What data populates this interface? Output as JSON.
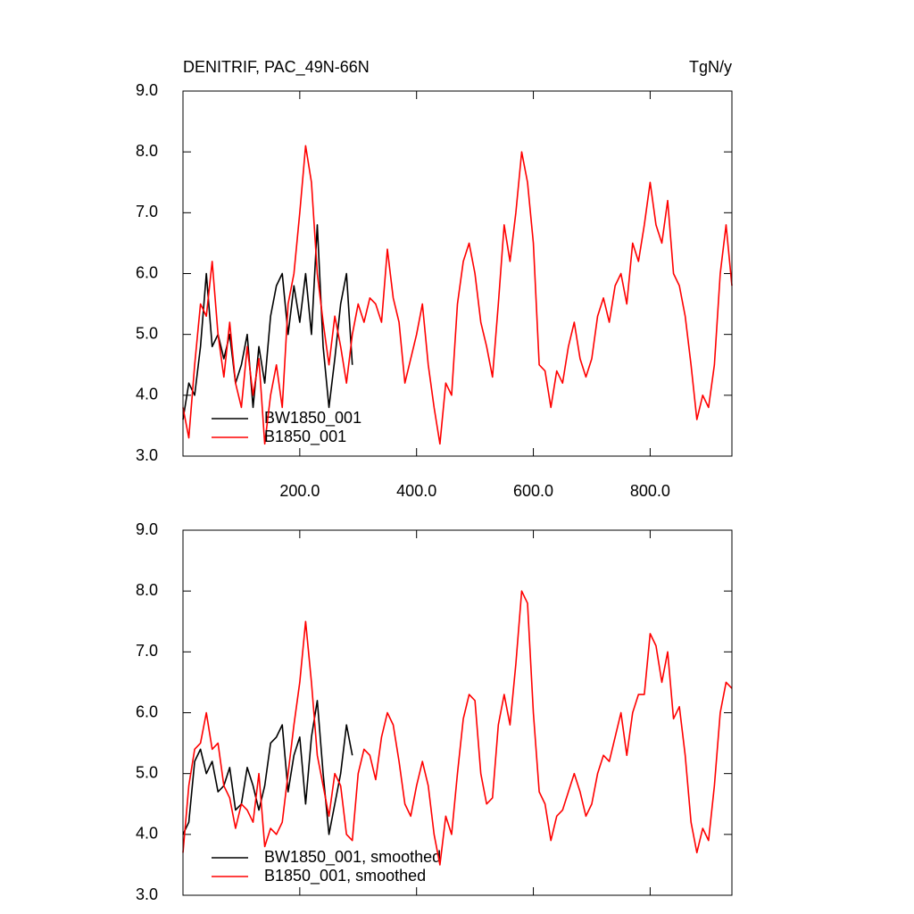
{
  "chart_data": [
    {
      "type": "line",
      "title": "DENITRIF, PAC_49N-66N",
      "units": "TgN/y",
      "x": [
        0,
        10,
        20,
        30,
        40,
        50,
        60,
        70,
        80,
        90,
        100,
        110,
        120,
        130,
        140,
        150,
        160,
        170,
        180,
        190,
        200,
        210,
        220,
        230,
        240,
        250,
        260,
        270,
        280,
        290,
        300,
        310,
        320,
        330,
        340,
        350,
        360,
        370,
        380,
        390,
        400,
        410,
        420,
        430,
        440,
        450,
        460,
        470,
        480,
        490,
        500,
        510,
        520,
        530,
        540,
        550,
        560,
        570,
        580,
        590,
        600,
        610,
        620,
        630,
        640,
        650,
        660,
        670,
        680,
        690,
        700,
        710,
        720,
        730,
        740,
        750,
        760,
        770,
        780,
        790,
        800,
        810,
        820,
        830,
        840,
        850,
        860,
        870,
        880,
        890,
        900,
        910,
        920,
        930,
        940
      ],
      "series": [
        {
          "name": "BW1850_001",
          "color": "#000000",
          "values": [
            3.6,
            4.2,
            4.0,
            4.8,
            6.0,
            4.8,
            5.0,
            4.6,
            5.0,
            4.2,
            4.5,
            5.0,
            3.8,
            4.8,
            4.2,
            5.3,
            5.8,
            6.0,
            5.0,
            5.8,
            5.2,
            6.0,
            5.0,
            6.8,
            4.8,
            3.8,
            4.6,
            5.5,
            6.0,
            4.5,
            null,
            null,
            null,
            null,
            null,
            null,
            null,
            null,
            null,
            null,
            null,
            null,
            null,
            null,
            null,
            null,
            null,
            null,
            null,
            null,
            null,
            null,
            null,
            null,
            null,
            null,
            null,
            null,
            null,
            null,
            null,
            null,
            null,
            null,
            null,
            null,
            null,
            null,
            null,
            null,
            null,
            null,
            null,
            null,
            null,
            null,
            null,
            null,
            null,
            null,
            null,
            null,
            null,
            null,
            null,
            null,
            null,
            null,
            null,
            null,
            null,
            null,
            null,
            null,
            null
          ]
        },
        {
          "name": "B1850_001",
          "color": "#ff0000",
          "values": [
            3.8,
            3.3,
            4.5,
            5.5,
            5.3,
            6.2,
            5.0,
            4.3,
            5.2,
            4.2,
            3.8,
            4.8,
            4.0,
            4.6,
            3.2,
            4.0,
            4.5,
            3.8,
            5.5,
            6.0,
            7.0,
            8.1,
            7.5,
            6.0,
            5.2,
            4.5,
            5.3,
            4.8,
            4.2,
            5.0,
            5.5,
            5.2,
            5.6,
            5.5,
            5.2,
            6.4,
            5.6,
            5.2,
            4.2,
            4.6,
            5.0,
            5.5,
            4.5,
            3.8,
            3.2,
            4.2,
            4.0,
            5.5,
            6.2,
            6.5,
            6.0,
            5.2,
            4.8,
            4.3,
            5.5,
            6.8,
            6.2,
            7.0,
            8.0,
            7.5,
            6.5,
            4.5,
            4.4,
            3.8,
            4.4,
            4.2,
            4.8,
            5.2,
            4.6,
            4.3,
            4.6,
            5.3,
            5.6,
            5.2,
            5.8,
            6.0,
            5.5,
            6.5,
            6.2,
            6.8,
            7.5,
            6.8,
            6.5,
            7.2,
            6.0,
            5.8,
            5.3,
            4.5,
            3.6,
            4.0,
            3.8,
            4.5,
            6.0,
            6.8,
            5.8
          ]
        }
      ],
      "xlim": [
        0,
        940
      ],
      "xticks": [
        {
          "value": 200,
          "label": "200.0"
        },
        {
          "value": 400,
          "label": "400.0"
        },
        {
          "value": 600,
          "label": "600.0"
        },
        {
          "value": 800,
          "label": "800.0"
        }
      ],
      "xtick_labels": true,
      "ylim": [
        3,
        9
      ],
      "yticks": [
        {
          "value": 3,
          "label": "3.0"
        },
        {
          "value": 4,
          "label": "4.0"
        },
        {
          "value": 5,
          "label": "5.0"
        },
        {
          "value": 6,
          "label": "6.0"
        },
        {
          "value": 7,
          "label": "7.0"
        },
        {
          "value": 8,
          "label": "8.0"
        },
        {
          "value": 9,
          "label": "9.0"
        }
      ],
      "legend": "lower left"
    },
    {
      "type": "line",
      "x": [
        0,
        10,
        20,
        30,
        40,
        50,
        60,
        70,
        80,
        90,
        100,
        110,
        120,
        130,
        140,
        150,
        160,
        170,
        180,
        190,
        200,
        210,
        220,
        230,
        240,
        250,
        260,
        270,
        280,
        290,
        300,
        310,
        320,
        330,
        340,
        350,
        360,
        370,
        380,
        390,
        400,
        410,
        420,
        430,
        440,
        450,
        460,
        470,
        480,
        490,
        500,
        510,
        520,
        530,
        540,
        550,
        560,
        570,
        580,
        590,
        600,
        610,
        620,
        630,
        640,
        650,
        660,
        670,
        680,
        690,
        700,
        710,
        720,
        730,
        740,
        750,
        760,
        770,
        780,
        790,
        800,
        810,
        820,
        830,
        840,
        850,
        860,
        870,
        880,
        890,
        900,
        910,
        920,
        930,
        940
      ],
      "series": [
        {
          "name": "BW1850_001, smoothed",
          "color": "#000000",
          "values": [
            4.0,
            4.2,
            5.2,
            5.4,
            5.0,
            5.2,
            4.7,
            4.8,
            5.1,
            4.4,
            4.5,
            5.1,
            4.8,
            4.4,
            4.8,
            5.5,
            5.6,
            5.8,
            4.7,
            5.3,
            5.6,
            4.5,
            5.6,
            6.2,
            5.0,
            4.0,
            4.5,
            5.0,
            5.8,
            5.3,
            null,
            null,
            null,
            null,
            null,
            null,
            null,
            null,
            null,
            null,
            null,
            null,
            null,
            null,
            null,
            null,
            null,
            null,
            null,
            null,
            null,
            null,
            null,
            null,
            null,
            null,
            null,
            null,
            null,
            null,
            null,
            null,
            null,
            null,
            null,
            null,
            null,
            null,
            null,
            null,
            null,
            null,
            null,
            null,
            null,
            null,
            null,
            null,
            null,
            null,
            null,
            null,
            null,
            null,
            null,
            null,
            null,
            null,
            null,
            null,
            null,
            null,
            null,
            null,
            null
          ]
        },
        {
          "name": "B1850_001, smoothed",
          "color": "#ff0000",
          "values": [
            3.7,
            4.8,
            5.4,
            5.5,
            6.0,
            5.4,
            5.5,
            4.8,
            4.6,
            4.1,
            4.5,
            4.4,
            4.2,
            5.0,
            3.8,
            4.1,
            4.0,
            4.2,
            5.0,
            5.8,
            6.5,
            7.5,
            6.5,
            5.3,
            4.8,
            4.3,
            5.0,
            4.8,
            4.0,
            3.9,
            5.0,
            5.4,
            5.3,
            4.9,
            5.6,
            6.0,
            5.8,
            5.2,
            4.5,
            4.3,
            4.8,
            5.2,
            4.8,
            4.0,
            3.5,
            4.3,
            4.0,
            5.0,
            5.9,
            6.3,
            6.2,
            5.0,
            4.5,
            4.6,
            5.8,
            6.3,
            5.8,
            6.8,
            8.0,
            7.8,
            6.0,
            4.7,
            4.5,
            3.9,
            4.3,
            4.4,
            4.7,
            5.0,
            4.7,
            4.3,
            4.5,
            5.0,
            5.3,
            5.2,
            5.6,
            6.0,
            5.3,
            6.0,
            6.3,
            6.3,
            7.3,
            7.1,
            6.5,
            7.0,
            5.9,
            6.1,
            5.3,
            4.2,
            3.7,
            4.1,
            3.9,
            4.8,
            6.0,
            6.5,
            6.4
          ]
        }
      ],
      "xlim": [
        0,
        940
      ],
      "xticks": [
        200,
        400,
        600,
        800
      ],
      "xtick_labels": false,
      "ylim": [
        3,
        9
      ],
      "yticks": [
        {
          "value": 3,
          "label": "3.0"
        },
        {
          "value": 4,
          "label": "4.0"
        },
        {
          "value": 5,
          "label": "5.0"
        },
        {
          "value": 6,
          "label": "6.0"
        },
        {
          "value": 7,
          "label": "7.0"
        },
        {
          "value": 8,
          "label": "8.0"
        },
        {
          "value": 9,
          "label": "9.0"
        }
      ],
      "legend": "lower left"
    }
  ]
}
